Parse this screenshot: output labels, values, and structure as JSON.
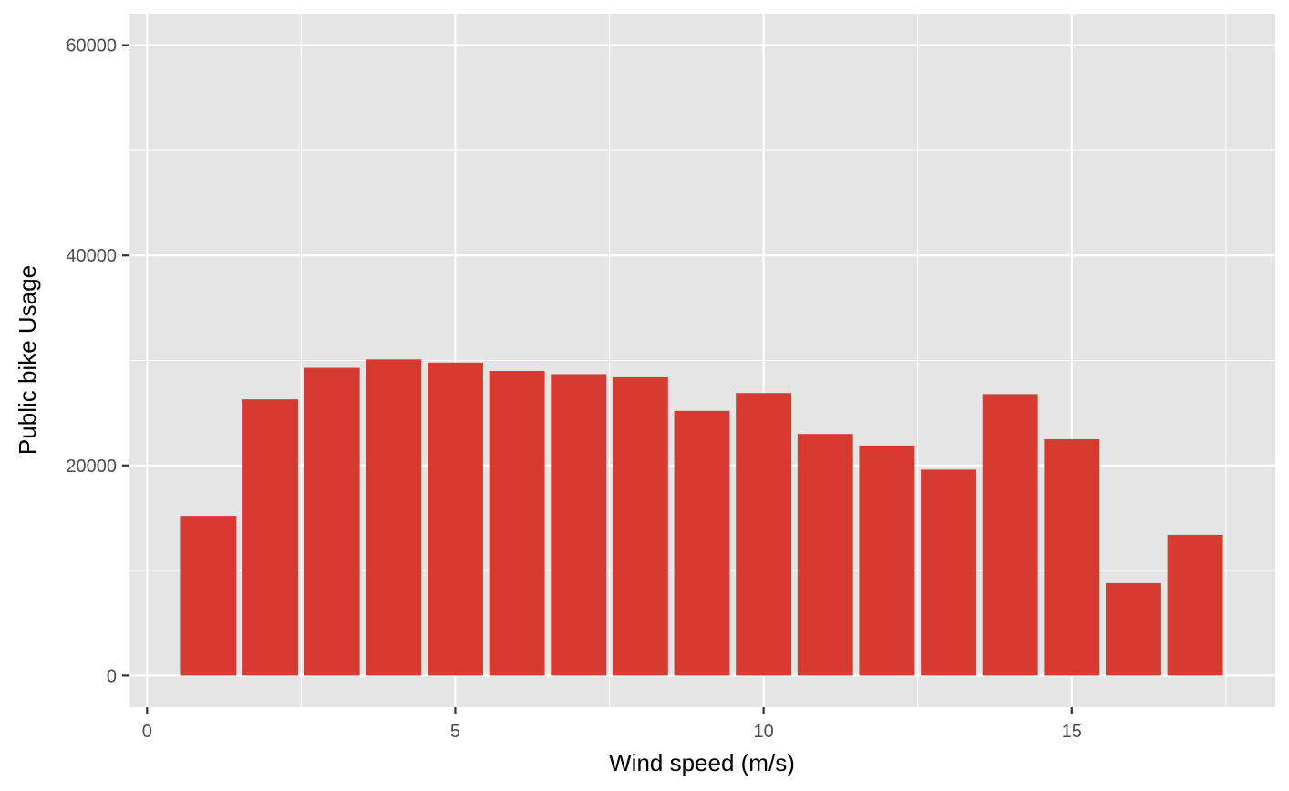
{
  "chart_data": {
    "type": "bar",
    "xlabel": "Wind speed (m/s)",
    "ylabel": "Public bike Usage",
    "x": [
      1,
      2,
      3,
      4,
      5,
      6,
      7,
      8,
      9,
      10,
      11,
      12,
      13,
      14,
      15,
      16,
      17
    ],
    "values": [
      15200,
      26300,
      29300,
      30100,
      29800,
      29000,
      28700,
      28400,
      25200,
      26900,
      23000,
      21900,
      19600,
      26800,
      22500,
      8800,
      13400
    ],
    "xlim": [
      -0.3,
      18.3
    ],
    "ylim": [
      -3000,
      63000
    ],
    "x_ticks": [
      0,
      5,
      10,
      15
    ],
    "y_ticks": [
      0,
      20000,
      40000,
      60000
    ],
    "bar_width": 0.9,
    "grid": true,
    "legend": "none",
    "colors": {
      "bar": "#d63a30",
      "panel": "#e5e5e5",
      "grid": "#ffffff"
    }
  }
}
